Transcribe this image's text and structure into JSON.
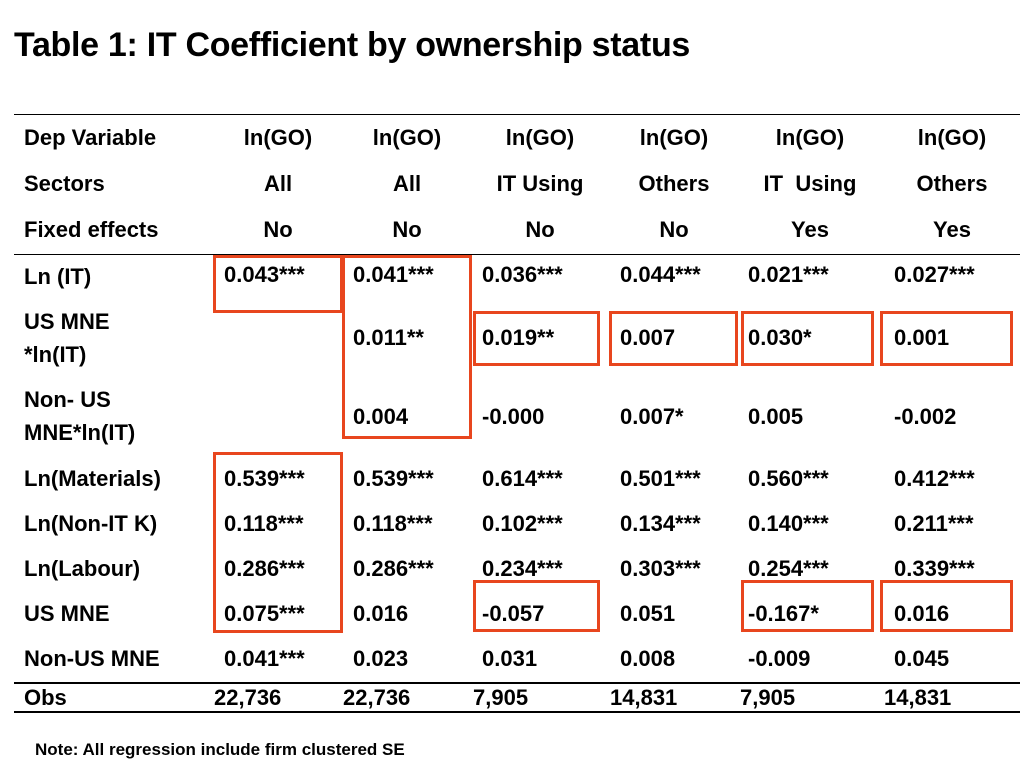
{
  "title": "Table 1: IT Coefficient by ownership status",
  "header": {
    "dep_variable": {
      "label": "Dep Variable",
      "values": [
        "ln(GO)",
        "ln(GO)",
        "ln(GO)",
        "ln(GO)",
        "ln(GO)",
        "ln(GO)"
      ]
    },
    "sectors": {
      "label": "Sectors",
      "values": [
        "All",
        "All",
        "IT Using",
        "Others",
        "IT  Using",
        "Others"
      ]
    },
    "fixed_effects": {
      "label": "Fixed effects",
      "values": [
        "No",
        "No",
        "No",
        "No",
        "Yes",
        "Yes"
      ]
    }
  },
  "rows": [
    {
      "label": "Ln (IT)",
      "values": [
        "0.043***",
        "0.041***",
        "0.036***",
        "0.044***",
        "0.021***",
        "0.027***"
      ]
    },
    {
      "label_line1": "US MNE",
      "label_line2": "*ln(IT)",
      "values": [
        "",
        "0.011**",
        "0.019**",
        "0.007",
        "0.030*",
        "0.001"
      ]
    },
    {
      "label_line1": "Non- US",
      "label_line2": "MNE*ln(IT)",
      "values": [
        "",
        "0.004",
        "-0.000",
        "0.007*",
        "0.005",
        "-0.002"
      ]
    },
    {
      "label": "Ln(Materials)",
      "values": [
        "0.539***",
        "0.539***",
        "0.614***",
        "0.501***",
        "0.560***",
        "0.412***"
      ]
    },
    {
      "label": "Ln(Non-IT K)",
      "values": [
        "0.118***",
        "0.118***",
        "0.102***",
        "0.134***",
        "0.140***",
        "0.211***"
      ]
    },
    {
      "label": "Ln(Labour)",
      "values": [
        "0.286***",
        "0.286***",
        "0.234***",
        "0.303***",
        "0.254***",
        "0.339***"
      ]
    },
    {
      "label": "US MNE",
      "values": [
        "0.075***",
        "0.016",
        "-0.057",
        "0.051",
        "-0.167*",
        "0.016"
      ]
    },
    {
      "label": "Non-US MNE",
      "values": [
        "0.041***",
        "0.023",
        "0.031",
        "0.008",
        "-0.009",
        "0.045"
      ]
    }
  ],
  "obs": {
    "label": "Obs",
    "values": [
      "22,736",
      "22,736",
      "7,905",
      "14,831",
      "7,905",
      "14,831"
    ]
  },
  "note": "Note: All regression include firm clustered SE",
  "colors": {
    "highlight_box": "#e8461e",
    "text": "#000000",
    "background": "#ffffff"
  }
}
